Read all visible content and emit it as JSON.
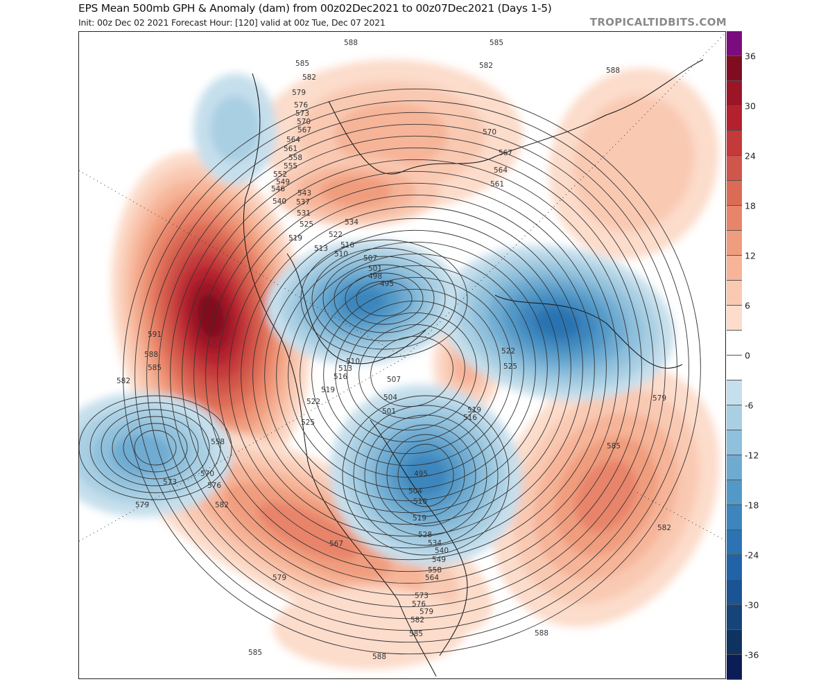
{
  "header": {
    "title": "EPS Mean 500mb GPH & Anomaly (dam) from 00z02Dec2021 to 00z07Dec2021 (Days 1-5)",
    "subtitle": "Init: 00z Dec 02 2021   Forecast Hour: [120]   valid at 00z Tue, Dec 07 2021",
    "brand": "TROPICALTIDBITS.COM"
  },
  "colorbar": {
    "tick_labels": [
      "36",
      "30",
      "24",
      "18",
      "12",
      "6",
      "0",
      "-6",
      "-12",
      "-18",
      "-24",
      "-30",
      "-36"
    ],
    "colors": [
      "#7b0c7e",
      "#7f0d1f",
      "#9b1527",
      "#b5202e",
      "#c43a3a",
      "#d0554a",
      "#dc6b55",
      "#e8846a",
      "#f09d7e",
      "#f6b498",
      "#f9c9b2",
      "#fcdccb",
      "#ffffff",
      "#ffffff",
      "#c6dfec",
      "#a9cfe3",
      "#8fc0dc",
      "#6fabd1",
      "#5399c7",
      "#3d86bd",
      "#2b73b2",
      "#2163a8",
      "#1a5494",
      "#154479",
      "#0f3361",
      "#0c1d55"
    ]
  },
  "map": {
    "contour_labels": [
      "588",
      "585",
      "585",
      "582",
      "582",
      "588",
      "579",
      "576",
      "573",
      "570",
      "567",
      "564",
      "561",
      "558",
      "555",
      "552",
      "549",
      "546",
      "543",
      "540",
      "537",
      "534",
      "531",
      "525",
      "522",
      "519",
      "516",
      "513",
      "510",
      "507",
      "501",
      "498",
      "495",
      "570",
      "567",
      "564",
      "561",
      "591",
      "588",
      "585",
      "582",
      "510",
      "513",
      "516",
      "519",
      "522",
      "525",
      "507",
      "504",
      "501",
      "522",
      "525",
      "519",
      "516",
      "558",
      "570",
      "573",
      "576",
      "579",
      "582",
      "495",
      "504",
      "510",
      "519",
      "528",
      "534",
      "540",
      "549",
      "558",
      "564",
      "567",
      "579",
      "573",
      "576",
      "579",
      "582",
      "585",
      "588",
      "588",
      "585",
      "579",
      "585",
      "582"
    ]
  }
}
